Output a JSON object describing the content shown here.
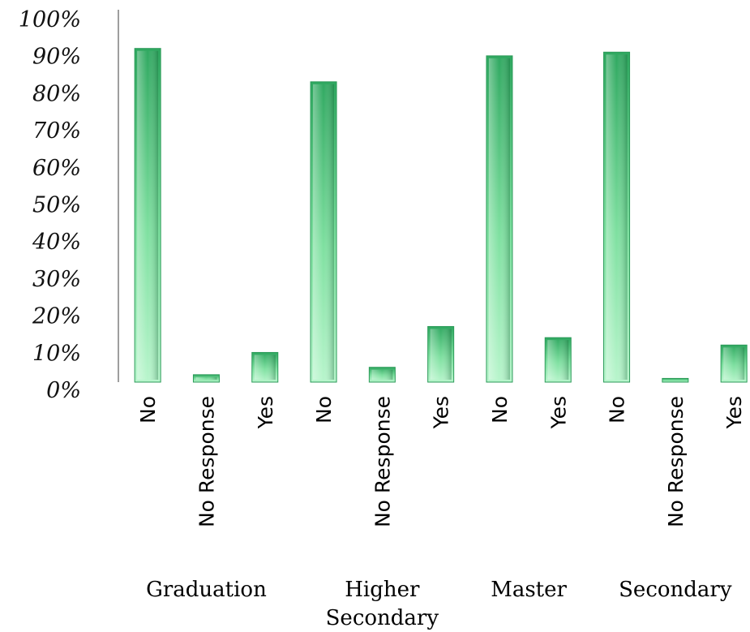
{
  "chart_data": {
    "type": "bar",
    "title": "",
    "xlabel": "",
    "ylabel": "",
    "ylim": [
      0,
      100
    ],
    "y_ticks": [
      "0%",
      "10%",
      "20%",
      "30%",
      "40%",
      "50%",
      "60%",
      "70%",
      "80%",
      "90%",
      "100%"
    ],
    "grid": false,
    "legend": "none",
    "bar_color": "#2fa860",
    "bar_highlight": "#b8f5cc",
    "axis_color": "#9e9e9e",
    "groups": [
      {
        "label": "Graduation",
        "bars": [
          {
            "category": "No",
            "value": 90
          },
          {
            "category": "No Response",
            "value": 2
          },
          {
            "category": "Yes",
            "value": 8
          }
        ]
      },
      {
        "label": "Higher Secondary",
        "bars": [
          {
            "category": "No",
            "value": 81
          },
          {
            "category": "No Response",
            "value": 4
          },
          {
            "category": "Yes",
            "value": 15
          }
        ]
      },
      {
        "label": "Master",
        "bars": [
          {
            "category": "No",
            "value": 88
          },
          {
            "category": "Yes",
            "value": 12
          }
        ]
      },
      {
        "label": "Secondary",
        "bars": [
          {
            "category": "No",
            "value": 89
          },
          {
            "category": "No Response",
            "value": 1
          },
          {
            "category": "Yes",
            "value": 10
          }
        ]
      }
    ]
  }
}
